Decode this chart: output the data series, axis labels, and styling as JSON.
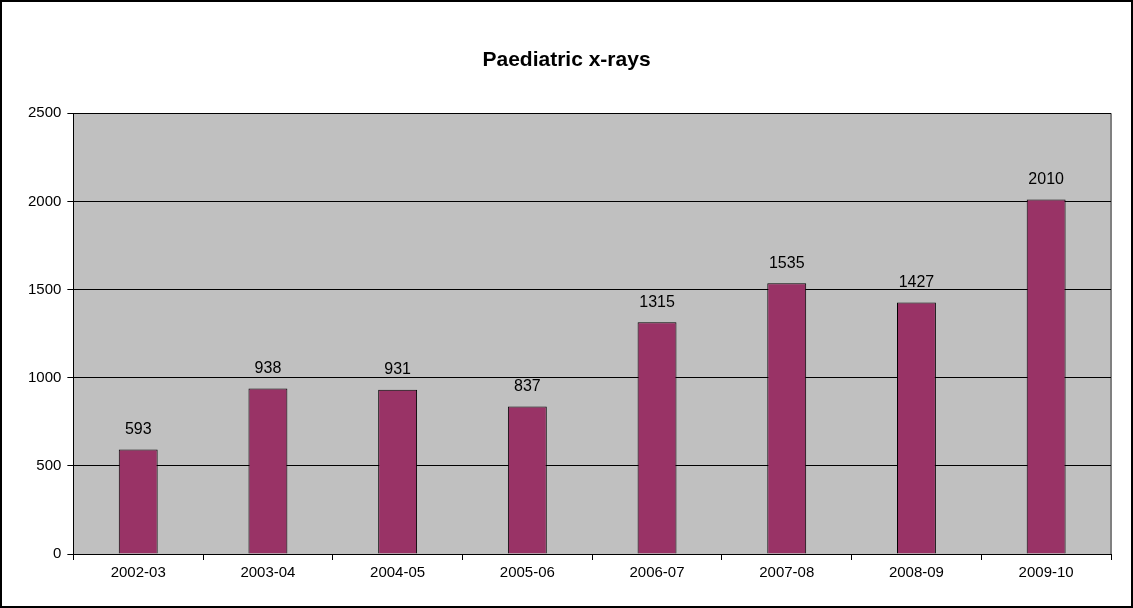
{
  "chart_data": {
    "type": "bar",
    "title": "Paediatric x-rays",
    "categories": [
      "2002-03",
      "2003-04",
      "2004-05",
      "2005-06",
      "2006-07",
      "2007-08",
      "2008-09",
      "2009-10"
    ],
    "values": [
      593,
      938,
      931,
      837,
      1315,
      1535,
      1427,
      2010
    ],
    "color": "#993366",
    "ylim": [
      0,
      2500
    ],
    "yticks": [
      0,
      500,
      1000,
      1500,
      2000,
      2500
    ],
    "grid": "y",
    "data_labels": true
  }
}
